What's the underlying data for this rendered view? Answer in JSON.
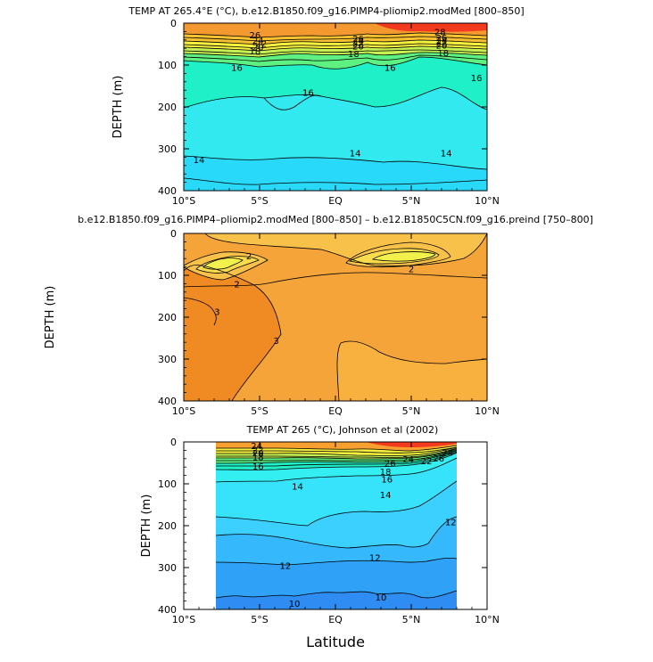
{
  "x_axis_title": "Latitude",
  "chart_data": [
    {
      "type": "contour",
      "title": "TEMP AT 265.4°E (°C), b.e12.B1850.f09_g16.PIMP4-pliomip2.modMed [800–850]",
      "xlabel": "",
      "ylabel": "DEPTH (m)",
      "xticks": [
        "10°S",
        "5°S",
        "EQ",
        "5°N",
        "10°N"
      ],
      "xlim": [
        -10,
        10
      ],
      "yticks": [
        "0",
        "100",
        "200",
        "300",
        "400"
      ],
      "ylim": [
        0,
        400
      ],
      "contour_labels": [
        {
          "text": "26",
          "lat": -5.3,
          "depth": 28
        },
        {
          "text": "24",
          "lat": -5.1,
          "depth": 40
        },
        {
          "text": "22",
          "lat": -4.9,
          "depth": 48
        },
        {
          "text": "20",
          "lat": -5.1,
          "depth": 56
        },
        {
          "text": "18",
          "lat": -5.3,
          "depth": 66
        },
        {
          "text": "16",
          "lat": -6.5,
          "depth": 105
        },
        {
          "text": "26",
          "lat": 1.5,
          "depth": 36
        },
        {
          "text": "24",
          "lat": 1.5,
          "depth": 42
        },
        {
          "text": "22",
          "lat": 1.5,
          "depth": 48
        },
        {
          "text": "20",
          "lat": 1.5,
          "depth": 54
        },
        {
          "text": "18",
          "lat": 1.2,
          "depth": 72
        },
        {
          "text": "16",
          "lat": -1.8,
          "depth": 165
        },
        {
          "text": "16",
          "lat": 3.6,
          "depth": 105
        },
        {
          "text": "16",
          "lat": 9.3,
          "depth": 130
        },
        {
          "text": "28",
          "lat": 6.9,
          "depth": 20
        },
        {
          "text": "26",
          "lat": 7.0,
          "depth": 34
        },
        {
          "text": "24",
          "lat": 7.0,
          "depth": 40
        },
        {
          "text": "22",
          "lat": 7.0,
          "depth": 46
        },
        {
          "text": "20",
          "lat": 7.0,
          "depth": 52
        },
        {
          "text": "18",
          "lat": 7.1,
          "depth": 70
        },
        {
          "text": "14",
          "lat": -9.0,
          "depth": 325
        },
        {
          "text": "14",
          "lat": 1.3,
          "depth": 310
        },
        {
          "text": "14",
          "lat": 7.3,
          "depth": 310
        }
      ],
      "levels": [
        {
          "name": "below 14",
          "color": "#29d9f9"
        },
        {
          "name": "14–16",
          "color": "#33e9f0"
        },
        {
          "name": "16–18",
          "color": "#1ff0c8"
        },
        {
          "name": "18–20",
          "color": "#5ef080"
        },
        {
          "name": "20–22",
          "color": "#c6f052"
        },
        {
          "name": "22–24",
          "color": "#f5ef3e"
        },
        {
          "name": "24–26",
          "color": "#f7c12f"
        },
        {
          "name": "26–28",
          "color": "#f3992f"
        },
        {
          "name": "28+",
          "color": "#f3391e"
        }
      ]
    },
    {
      "type": "contour",
      "title": "b.e12.B1850.f09_g16.PIMP4–pliomip2.modMed [800–850] – b.e12.B1850C5CN.f09_g16.preind [750–800]",
      "xlabel": "",
      "ylabel": "DEPTH (m)",
      "xticks": [
        "10°S",
        "5°S",
        "EQ",
        "5°N",
        "10°N"
      ],
      "xlim": [
        -10,
        10
      ],
      "yticks": [
        "0",
        "100",
        "200",
        "300",
        "400"
      ],
      "ylim": [
        0,
        400
      ],
      "contour_labels": [
        {
          "text": "2",
          "lat": -5.7,
          "depth": 53
        },
        {
          "text": "2",
          "lat": -6.5,
          "depth": 120
        },
        {
          "text": "2",
          "lat": 5.0,
          "depth": 84
        },
        {
          "text": "3",
          "lat": -7.8,
          "depth": 186
        },
        {
          "text": "3",
          "lat": -3.9,
          "depth": 255
        }
      ],
      "levels": [
        {
          "name": "<1.5",
          "color": "#f2f04c"
        },
        {
          "name": "1.5–2",
          "color": "#f8dc4c"
        },
        {
          "name": "2–2.5",
          "color": "#f8c24a"
        },
        {
          "name": "2.5–3",
          "color": "#f5a43a"
        },
        {
          "name": "3+",
          "color": "#ef8b22"
        }
      ]
    },
    {
      "type": "contour",
      "title": "TEMP AT 265 (°C), Johnson et al (2002)",
      "xlabel": "Latitude",
      "ylabel": "DEPTH (m)",
      "xticks": [
        "10°S",
        "5°S",
        "EQ",
        "5°N",
        "10°N"
      ],
      "xlim": [
        -10,
        10
      ],
      "yticks": [
        "0",
        "100",
        "200",
        "300",
        "400"
      ],
      "ylim": [
        0,
        400
      ],
      "data_range_lat": [
        -8,
        8
      ],
      "contour_labels": [
        {
          "text": "24",
          "lat": -5.2,
          "depth": 8
        },
        {
          "text": "22",
          "lat": -5.1,
          "depth": 18
        },
        {
          "text": "20",
          "lat": -5.1,
          "depth": 26
        },
        {
          "text": "18",
          "lat": -5.1,
          "depth": 35
        },
        {
          "text": "16",
          "lat": -5.1,
          "depth": 57
        },
        {
          "text": "14",
          "lat": -2.5,
          "depth": 105
        },
        {
          "text": "14",
          "lat": 3.3,
          "depth": 125
        },
        {
          "text": "12",
          "lat": -3.3,
          "depth": 295
        },
        {
          "text": "12",
          "lat": 2.6,
          "depth": 275
        },
        {
          "text": "12",
          "lat": 7.6,
          "depth": 190
        },
        {
          "text": "10",
          "lat": -2.7,
          "depth": 385
        },
        {
          "text": "10",
          "lat": 3.0,
          "depth": 370
        },
        {
          "text": "26",
          "lat": 3.6,
          "depth": 50
        },
        {
          "text": "24",
          "lat": 4.8,
          "depth": 40
        },
        {
          "text": "22",
          "lat": 6.0,
          "depth": 45
        },
        {
          "text": "26",
          "lat": 6.8,
          "depth": 38
        },
        {
          "text": "24",
          "lat": 7.4,
          "depth": 24
        },
        {
          "text": "18",
          "lat": 3.3,
          "depth": 70
        },
        {
          "text": "16",
          "lat": 3.4,
          "depth": 88
        }
      ],
      "levels": [
        {
          "name": "<10",
          "color": "#2e8cf2"
        },
        {
          "name": "10–11",
          "color": "#2fa2f8"
        },
        {
          "name": "11–12",
          "color": "#36b8fc"
        },
        {
          "name": "12–13",
          "color": "#3bd0ff"
        },
        {
          "name": "13–14",
          "color": "#37e3fb"
        },
        {
          "name": "14–16",
          "color": "#33eff2"
        },
        {
          "name": "16–18",
          "color": "#1ff0c8"
        },
        {
          "name": "18–20",
          "color": "#5ef080"
        },
        {
          "name": "20–22",
          "color": "#c6f052"
        },
        {
          "name": "22–24",
          "color": "#f5ef3e"
        },
        {
          "name": "24–26",
          "color": "#f7a02f"
        },
        {
          "name": "26+",
          "color": "#f3391e"
        }
      ]
    }
  ]
}
